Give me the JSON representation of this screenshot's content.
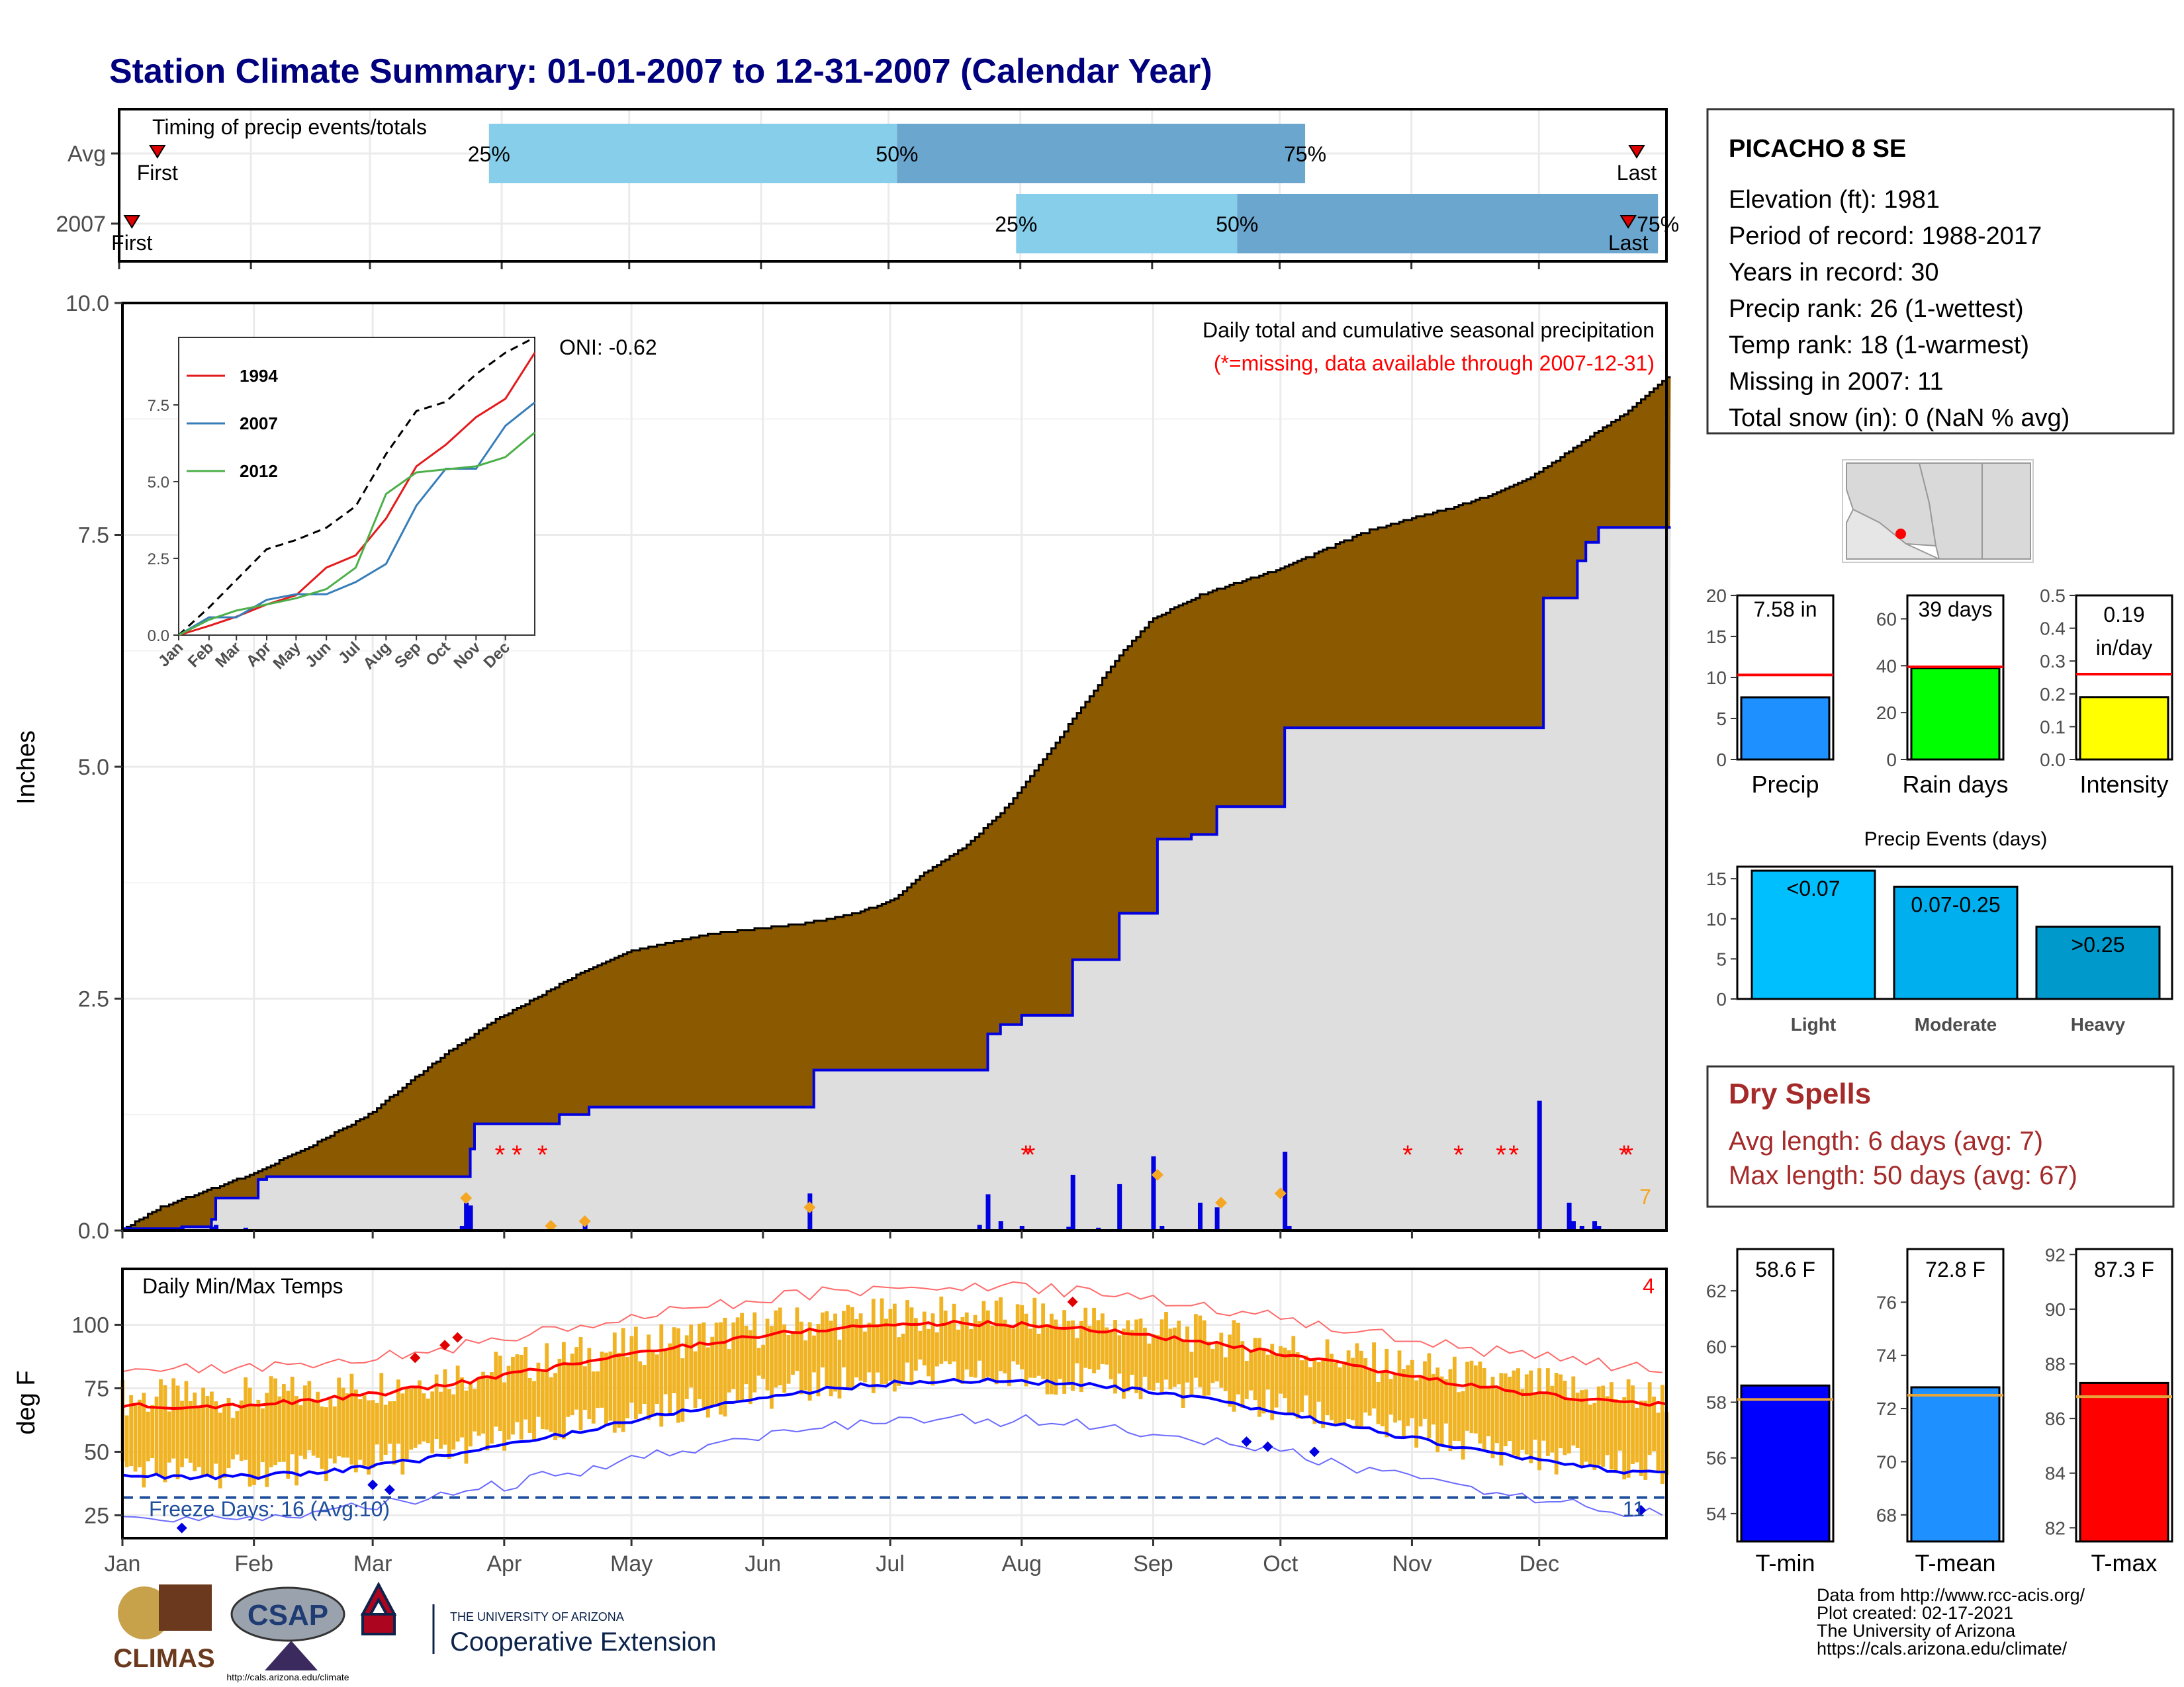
{
  "title": "Station Climate Summary: 01-01-2007 to 12-31-2007 (Calendar Year)",
  "colors": {
    "title": "#00007f",
    "brown": "#8b5a00",
    "gray_fill": "#dedede",
    "blue_line": "#0000e0",
    "light_blue": "#87ceeb",
    "mid_blue": "#6ba6cf",
    "orange": "#f5a623",
    "red": "#ff0000",
    "temp_bar": "#f0b323",
    "precip_bar": "#1e90ff",
    "raindays_bar": "#00ff00",
    "intensity_bar": "#ffff00",
    "light_bar": "#00bfff",
    "moderate_bar": "#00b0ee",
    "heavy_bar": "#0099cc",
    "dry_spell": "#a52a2a",
    "tmin_bar": "#0000ff",
    "tmean_bar": "#1e90ff",
    "tmax_bar": "#ff0000",
    "avg_line": "#e8a33b"
  },
  "timing": {
    "title": "Timing of precip events/totals",
    "rows": [
      {
        "label": "Avg",
        "first_label": "First",
        "last_label": "Last",
        "first_doy": 10,
        "last_doy": 358,
        "p25_doy": 88,
        "p50_doy": 184,
        "p75_doy": 280,
        "p25_label": "25%",
        "p50_label": "50%",
        "p75_label": "75%"
      },
      {
        "label": "2007",
        "first_label": "First",
        "last_label": "Last",
        "first_doy": 4,
        "last_doy": 356,
        "p25_doy": 212,
        "p50_doy": 264,
        "p75_doy": 363,
        "p25_label": "25%",
        "p50_label": "50%",
        "p75_label": "75%"
      }
    ]
  },
  "main_panel": {
    "ylabel": "Inches",
    "yticks": [
      "0.0",
      "2.5",
      "5.0",
      "7.5",
      "10.0"
    ],
    "oni": "ONI: -0.62",
    "note1": "Daily total and cumulative seasonal precipitation",
    "note2": "(*=missing, data available through 2007-12-31)",
    "corner_count": "7",
    "missing_marker": "*"
  },
  "inset": {
    "yticks": [
      "0.0",
      "2.5",
      "5.0",
      "7.5"
    ],
    "xticks": [
      "Jan",
      "Feb",
      "Mar",
      "Apr",
      "May",
      "Jun",
      "Jul",
      "Aug",
      "Sep",
      "Oct",
      "Nov",
      "Dec"
    ],
    "legend": [
      {
        "name": "1994",
        "color": "#e41a1c"
      },
      {
        "name": "2007",
        "color": "#377eb8"
      },
      {
        "name": "2012",
        "color": "#4daf4a"
      }
    ]
  },
  "months": [
    "Jan",
    "Feb",
    "Mar",
    "Apr",
    "May",
    "Jun",
    "Jul",
    "Aug",
    "Sep",
    "Oct",
    "Nov",
    "Dec"
  ],
  "temp_panel": {
    "title": "Daily Min/Max Temps",
    "ylabel": "deg F",
    "yticks": [
      "25",
      "50",
      "75",
      "100"
    ],
    "freeze_label": "Freeze Days: 16 (Avg:10)",
    "corner_top": "4",
    "corner_bottom": "11"
  },
  "station": {
    "name": "PICACHO 8 SE",
    "lines": [
      "Elevation (ft): 1981",
      "Period of record: 1988-2017",
      "Years in record: 30",
      "Precip rank: 26 (1-wettest)",
      "Temp rank: 18 (1-warmest)",
      "Missing in 2007: 11",
      "Total snow (in): 0 (NaN % avg)"
    ]
  },
  "summary_bars": [
    {
      "label": "Precip",
      "value": 7.58,
      "avg": 10.3,
      "ymax": 20,
      "ticks": [
        "0",
        "5",
        "10",
        "15",
        "20"
      ],
      "text1": "7.58 in",
      "text2": ""
    },
    {
      "label": "Rain days",
      "value": 39,
      "avg": 39.5,
      "ymax": 70,
      "ticks": [
        "0",
        "20",
        "40",
        "60"
      ],
      "text1": "39 days",
      "text2": ""
    },
    {
      "label": "Intensity",
      "value": 0.19,
      "avg": 0.26,
      "ymax": 0.5,
      "ticks": [
        "0.0",
        "0.1",
        "0.2",
        "0.3",
        "0.4",
        "0.5"
      ],
      "text1": "0.19",
      "text2": "in/day"
    }
  ],
  "precip_events": {
    "title": "Precip Events (days)",
    "yticks": [
      "0",
      "5",
      "10",
      "15"
    ],
    "bars": [
      {
        "label": "Light",
        "value": 16,
        "bar_label": "<0.07"
      },
      {
        "label": "Moderate",
        "value": 14,
        "bar_label": "0.07-0.25"
      },
      {
        "label": "Heavy",
        "value": 9,
        "bar_label": ">0.25"
      }
    ]
  },
  "dry_spells": {
    "title": "Dry Spells",
    "line1": "Avg length: 6 days (avg: 7)",
    "line2": "Max length: 50 days (avg: 67)"
  },
  "temp_bars": [
    {
      "label": "T-min",
      "value": 58.6,
      "avg": 58.1,
      "ymin": 53,
      "ymax": 63.5,
      "ticks": [
        "54",
        "56",
        "58",
        "60",
        "62"
      ],
      "text": "58.6 F"
    },
    {
      "label": "T-mean",
      "value": 72.8,
      "avg": 72.5,
      "ymin": 67,
      "ymax": 78,
      "ticks": [
        "68",
        "70",
        "72",
        "74",
        "76"
      ],
      "text": "72.8 F"
    },
    {
      "label": "T-max",
      "value": 87.3,
      "avg": 86.8,
      "ymin": 81.5,
      "ymax": 92.2,
      "ticks": [
        "82",
        "84",
        "86",
        "88",
        "90",
        "92"
      ],
      "text": "87.3 F"
    }
  ],
  "footer": {
    "lines": [
      "Data from http://www.rcc-acis.org/",
      "Plot created: 02-17-2021",
      "The University of Arizona",
      "https://cals.arizona.edu/climate/"
    ],
    "logo_climas": "CLIMAS",
    "logo_csap": "CSAP",
    "logo_csap_url": "http://cals.arizona.edu/climate",
    "ua_small": "THE UNIVERSITY OF ARIZONA",
    "ua_big": "Cooperative Extension"
  },
  "chart_data": {
    "type": "area",
    "title": "Daily total and cumulative seasonal precipitation",
    "ylabel": "Inches",
    "ylim": [
      0,
      10
    ],
    "xlabel": "",
    "average_cumulative": [
      [
        1,
        0
      ],
      [
        5,
        0.12
      ],
      [
        10,
        0.25
      ],
      [
        20,
        0.42
      ],
      [
        31,
        0.6
      ],
      [
        45,
        0.9
      ],
      [
        59,
        1.25
      ],
      [
        70,
        1.65
      ],
      [
        80,
        2.0
      ],
      [
        90,
        2.3
      ],
      [
        100,
        2.55
      ],
      [
        110,
        2.8
      ],
      [
        120,
        3.0
      ],
      [
        130,
        3.1
      ],
      [
        140,
        3.2
      ],
      [
        150,
        3.25
      ],
      [
        160,
        3.3
      ],
      [
        172,
        3.4
      ],
      [
        182,
        3.55
      ],
      [
        190,
        3.85
      ],
      [
        200,
        4.15
      ],
      [
        210,
        4.6
      ],
      [
        220,
        5.2
      ],
      [
        228,
        5.7
      ],
      [
        236,
        6.2
      ],
      [
        244,
        6.6
      ],
      [
        255,
        6.85
      ],
      [
        265,
        7.0
      ],
      [
        275,
        7.15
      ],
      [
        285,
        7.35
      ],
      [
        295,
        7.55
      ],
      [
        305,
        7.68
      ],
      [
        315,
        7.8
      ],
      [
        325,
        7.95
      ],
      [
        334,
        8.15
      ],
      [
        345,
        8.5
      ],
      [
        355,
        8.8
      ],
      [
        365,
        9.2
      ]
    ],
    "cumulative_2007": [
      [
        1,
        0.02
      ],
      [
        15,
        0.04
      ],
      [
        22,
        0.12
      ],
      [
        23,
        0.35
      ],
      [
        33,
        0.55
      ],
      [
        35,
        0.58
      ],
      [
        82,
        0.58
      ],
      [
        83,
        0.88
      ],
      [
        84,
        1.15
      ],
      [
        103,
        1.15
      ],
      [
        104,
        1.25
      ],
      [
        110,
        1.25
      ],
      [
        111,
        1.33
      ],
      [
        163,
        1.33
      ],
      [
        164,
        1.73
      ],
      [
        204,
        1.73
      ],
      [
        205,
        2.12
      ],
      [
        208,
        2.22
      ],
      [
        213,
        2.32
      ],
      [
        224,
        2.32
      ],
      [
        225,
        2.92
      ],
      [
        235,
        2.92
      ],
      [
        236,
        3.42
      ],
      [
        244,
        3.42
      ],
      [
        245,
        4.22
      ],
      [
        253,
        4.27
      ],
      [
        259,
        4.57
      ],
      [
        274,
        4.57
      ],
      [
        275,
        5.42
      ],
      [
        335,
        5.42
      ],
      [
        336,
        6.82
      ],
      [
        343,
        6.82
      ],
      [
        344,
        7.22
      ],
      [
        346,
        7.42
      ],
      [
        349,
        7.58
      ],
      [
        365,
        7.58
      ]
    ],
    "daily_2007": [
      [
        15,
        0.04
      ],
      [
        22,
        0.04
      ],
      [
        23,
        0.06
      ],
      [
        30,
        0.03
      ],
      [
        81,
        0.05
      ],
      [
        82,
        0.3
      ],
      [
        83,
        0.27
      ],
      [
        102,
        0.02
      ],
      [
        110,
        0.08
      ],
      [
        163,
        0.4
      ],
      [
        203,
        0.06
      ],
      [
        205,
        0.39
      ],
      [
        208,
        0.1
      ],
      [
        213,
        0.05
      ],
      [
        224,
        0.04
      ],
      [
        225,
        0.6
      ],
      [
        231,
        0.03
      ],
      [
        236,
        0.5
      ],
      [
        244,
        0.8
      ],
      [
        246,
        0.05
      ],
      [
        255,
        0.3
      ],
      [
        259,
        0.25
      ],
      [
        275,
        0.85
      ],
      [
        276,
        0.05
      ],
      [
        335,
        1.4
      ],
      [
        342,
        0.3
      ],
      [
        343,
        0.1
      ],
      [
        345,
        0.05
      ],
      [
        348,
        0.1
      ],
      [
        349,
        0.05
      ]
    ],
    "event_markers_2007": [
      [
        82,
        0.35
      ],
      [
        102,
        0.05
      ],
      [
        110,
        0.1
      ],
      [
        163,
        0.25
      ],
      [
        245,
        0.6
      ],
      [
        260,
        0.3
      ],
      [
        274,
        0.4
      ]
    ],
    "missing_days": [
      90,
      94,
      100,
      214,
      215,
      304,
      316,
      326,
      329,
      355,
      356
    ],
    "inset_series": [
      {
        "name": "Average",
        "points": [
          [
            1,
            0
          ],
          [
            32,
            0.9
          ],
          [
            60,
            1.8
          ],
          [
            91,
            2.8
          ],
          [
            121,
            3.1
          ],
          [
            152,
            3.5
          ],
          [
            182,
            4.2
          ],
          [
            213,
            5.9
          ],
          [
            244,
            7.3
          ],
          [
            274,
            7.6
          ],
          [
            305,
            8.5
          ],
          [
            335,
            9.2
          ],
          [
            365,
            9.7
          ]
        ]
      },
      {
        "name": "1994",
        "points": [
          [
            1,
            0
          ],
          [
            32,
            0.3
          ],
          [
            60,
            0.6
          ],
          [
            91,
            1.0
          ],
          [
            121,
            1.3
          ],
          [
            152,
            2.2
          ],
          [
            182,
            2.6
          ],
          [
            213,
            3.8
          ],
          [
            244,
            5.5
          ],
          [
            274,
            6.2
          ],
          [
            305,
            7.1
          ],
          [
            335,
            7.7
          ],
          [
            365,
            9.2
          ]
        ]
      },
      {
        "name": "2007",
        "points": [
          [
            1,
            0
          ],
          [
            32,
            0.58
          ],
          [
            60,
            0.58
          ],
          [
            91,
            1.15
          ],
          [
            121,
            1.33
          ],
          [
            152,
            1.33
          ],
          [
            182,
            1.73
          ],
          [
            213,
            2.32
          ],
          [
            244,
            4.22
          ],
          [
            274,
            5.42
          ],
          [
            305,
            5.42
          ],
          [
            335,
            6.82
          ],
          [
            365,
            7.58
          ]
        ]
      },
      {
        "name": "2012",
        "points": [
          [
            1,
            0
          ],
          [
            32,
            0.5
          ],
          [
            60,
            0.8
          ],
          [
            91,
            1.0
          ],
          [
            121,
            1.2
          ],
          [
            152,
            1.5
          ],
          [
            182,
            2.2
          ],
          [
            213,
            4.6
          ],
          [
            244,
            5.3
          ],
          [
            274,
            5.4
          ],
          [
            305,
            5.5
          ],
          [
            335,
            5.8
          ],
          [
            365,
            6.6
          ]
        ]
      }
    ]
  }
}
